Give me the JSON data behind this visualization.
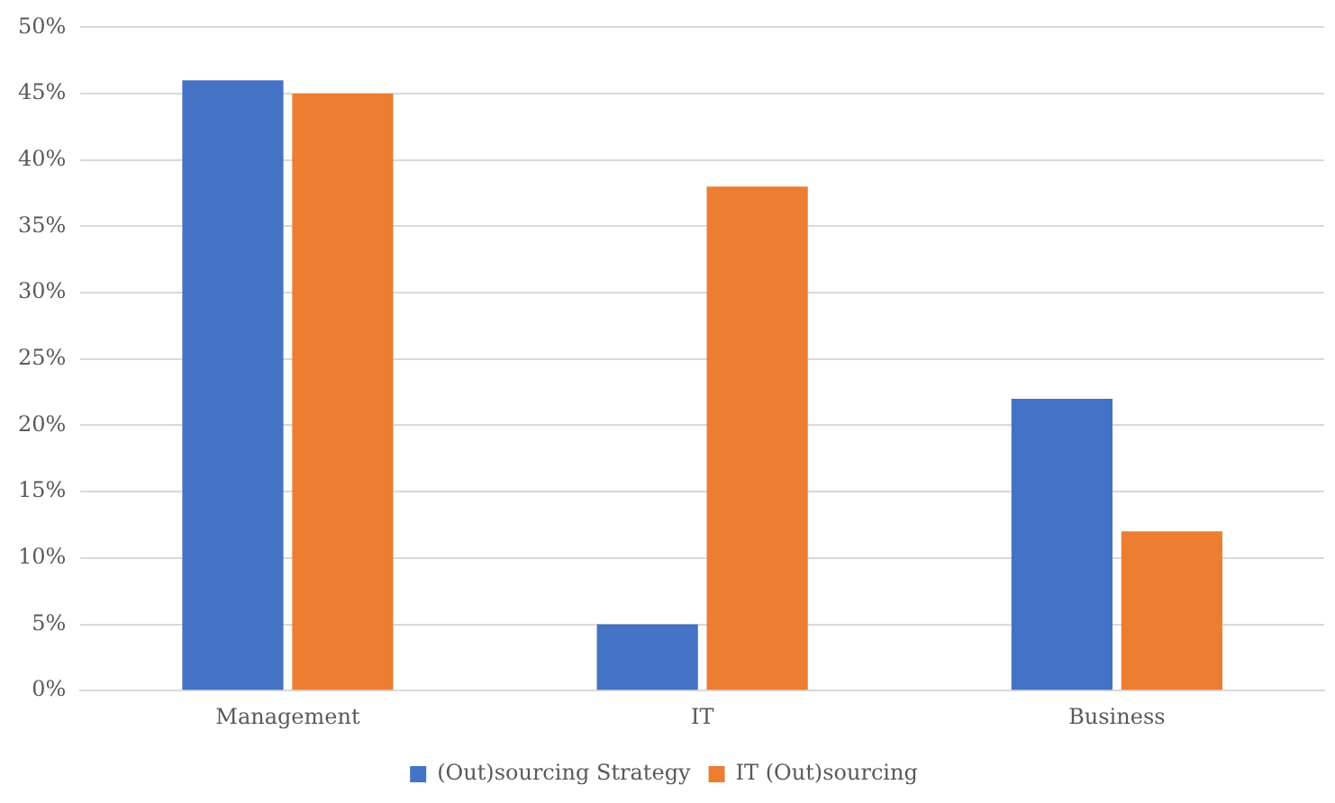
{
  "chart_data": {
    "type": "bar",
    "categories": [
      "Management",
      "IT",
      "Business"
    ],
    "series": [
      {
        "name": "(Out)sourcing Strategy",
        "color": "#4472c4",
        "values": [
          46,
          5,
          22
        ]
      },
      {
        "name": "IT (Out)sourcing",
        "color": "#ed7d31",
        "values": [
          45,
          38,
          12
        ]
      }
    ],
    "ylim": [
      0,
      50
    ],
    "yticks": [
      {
        "value": 0,
        "label": "0%"
      },
      {
        "value": 5,
        "label": "5%"
      },
      {
        "value": 10,
        "label": "10%"
      },
      {
        "value": 15,
        "label": "15%"
      },
      {
        "value": 20,
        "label": "20%"
      },
      {
        "value": 25,
        "label": "25%"
      },
      {
        "value": 30,
        "label": "30%"
      },
      {
        "value": 35,
        "label": "35%"
      },
      {
        "value": 40,
        "label": "40%"
      },
      {
        "value": 45,
        "label": "45%"
      },
      {
        "value": 50,
        "label": "50%"
      }
    ],
    "grid": "y",
    "legend": "bottom"
  }
}
